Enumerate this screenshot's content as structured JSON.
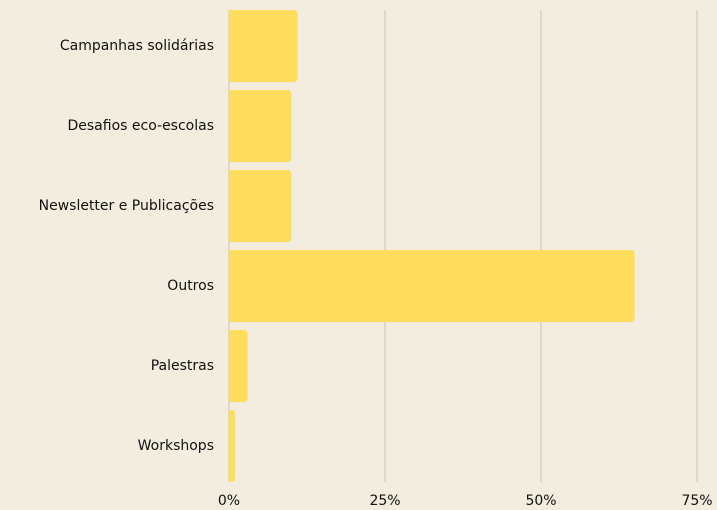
{
  "chart_data": {
    "type": "barh",
    "categories": [
      "Campanhas solidárias",
      "Desafios eco-escolas",
      "Newsletter e Publicações",
      "Outros",
      "Palestras",
      "Workshops"
    ],
    "values": [
      11,
      10,
      10,
      65,
      3,
      1
    ],
    "color": "#ffdd5c",
    "xlim": [
      0,
      75
    ],
    "xticks": [
      {
        "value": 0,
        "label": "0%"
      },
      {
        "value": 25,
        "label": "25%"
      },
      {
        "value": 50,
        "label": "50%"
      },
      {
        "value": 75,
        "label": "75%"
      }
    ],
    "grid": true
  }
}
